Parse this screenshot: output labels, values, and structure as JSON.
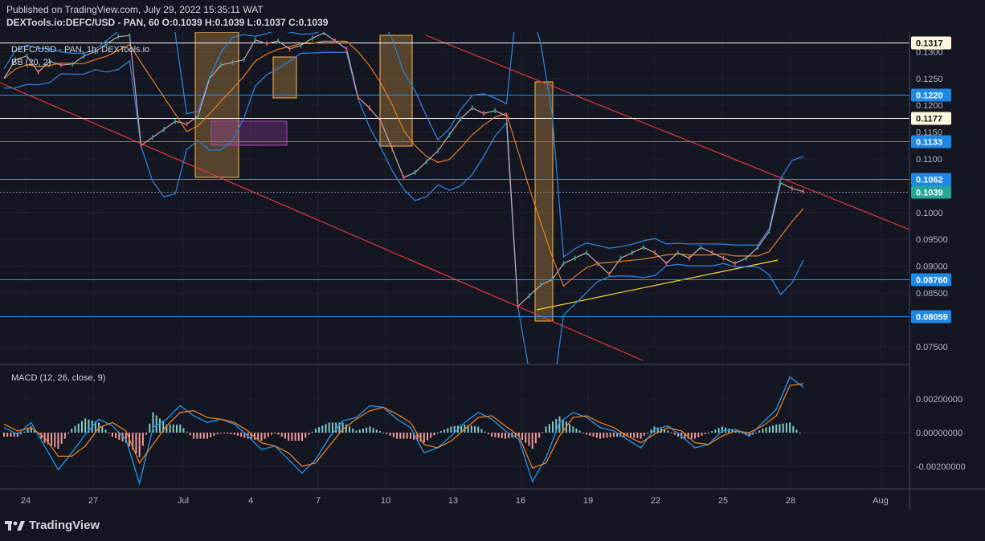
{
  "header": {
    "published": "Published on TradingView.com, July 29, 2022 15:35:11 WAT",
    "symbol_line": "DEXTools.io:DEFC/USD - PAN, 60",
    "ohlc": "O:0.1039 H:0.1039 L:0.1037 C:0.1039"
  },
  "legend": {
    "main": "DEFC/USD - PAN, 1h, DEXTools.io",
    "bb": "BB (20, 2)",
    "macd": "MACD (12, 26, close, 9)"
  },
  "brand": {
    "logo_text": "TradingView"
  },
  "colors": {
    "background": "#141722",
    "line_blue": "#2196f3",
    "line_red": "#e53935",
    "line_yellow": "#fdd835",
    "line_white": "#ffffff",
    "bb_band": "#2e7fd9",
    "bb_basis": "#e67e22",
    "macd_line": "#2196f3",
    "signal_line": "#e67e22",
    "hist_pos": "#80cbc4",
    "hist_neg": "#ef9a9a",
    "highlight_orange": "#ffb74d",
    "highlight_purple": "#ab47bc"
  },
  "price_axis": {
    "ticks": [
      "0.1300",
      "0.1250",
      "0.1200",
      "0.1150",
      "0.1100",
      "0.1000",
      "0.09500",
      "0.09000",
      "0.08500",
      "0.07500"
    ],
    "tick_values": [
      0.13,
      0.125,
      0.12,
      0.115,
      0.11,
      0.1,
      0.095,
      0.09,
      0.085,
      0.075
    ]
  },
  "price_levels": [
    {
      "value": 0.1317,
      "label": "0.1317",
      "style": "white"
    },
    {
      "value": 0.122,
      "label": "0.1220",
      "style": "blue"
    },
    {
      "value": 0.1177,
      "label": "0.1177",
      "style": "white"
    },
    {
      "value": 0.1133,
      "label": "0.1133",
      "style": "blue"
    },
    {
      "value": 0.1062,
      "label": "0.1062",
      "style": "blue"
    },
    {
      "value": 0.1039,
      "label": "0.1039",
      "style": "green"
    },
    {
      "value": 0.0876,
      "label": "0.08760",
      "style": "blue"
    },
    {
      "value": 0.08059,
      "label": "0.08059",
      "style": "blue"
    }
  ],
  "macd_axis": {
    "ticks": [
      "0.00200000",
      "0.00000000",
      "-0.00200000"
    ],
    "tick_values": [
      0.002,
      0,
      -0.002
    ]
  },
  "time_axis": {
    "ticks": [
      "24",
      "27",
      "Jul",
      "4",
      "7",
      "10",
      "13",
      "16",
      "19",
      "22",
      "25",
      "28",
      "Aug"
    ]
  },
  "chart_data": {
    "type": "line",
    "title": "DEFC/USD - PAN, 1h, DEXTools.io",
    "ylim": [
      0.0735,
      0.1335
    ],
    "close": [
      0.125,
      0.1285,
      0.1292,
      0.1262,
      0.1282,
      0.1275,
      0.1277,
      0.1292,
      0.13,
      0.1315,
      0.1328,
      0.133,
      0.1125,
      0.114,
      0.1155,
      0.117,
      0.1165,
      0.118,
      0.125,
      0.1275,
      0.128,
      0.1285,
      0.1322,
      0.1315,
      0.132,
      0.1305,
      0.1312,
      0.1325,
      0.1335,
      0.132,
      0.1305,
      0.1215,
      0.1195,
      0.117,
      0.1118,
      0.1065,
      0.1075,
      0.1095,
      0.1115,
      0.1145,
      0.1175,
      0.1195,
      0.1185,
      0.119,
      0.118,
      0.0825,
      0.0845,
      0.0865,
      0.0875,
      0.0905,
      0.0915,
      0.0925,
      0.0905,
      0.0885,
      0.0915,
      0.0925,
      0.0935,
      0.0925,
      0.0905,
      0.0925,
      0.0915,
      0.0935,
      0.0925,
      0.0915,
      0.0905,
      0.0915,
      0.0935,
      0.0965,
      0.1055,
      0.1045,
      0.1039
    ],
    "macd": [
      0.0003,
      -0.0001,
      0.0006,
      -0.0008,
      -0.0022,
      -0.0012,
      -0.0001,
      0.0008,
      0.0004,
      -0.0004,
      -0.003,
      0.0003,
      0.0008,
      0.0016,
      0.001,
      0.0006,
      0.0008,
      0.0005,
      -0.0002,
      -0.001,
      -0.0008,
      -0.0016,
      -0.0024,
      -0.0016,
      -0.0003,
      0.0007,
      0.0009,
      0.0016,
      0.0015,
      0.0008,
      0.0003,
      -0.0012,
      -0.0009,
      -0.0002,
      0.0006,
      0.0012,
      0.0008,
      0.0001,
      -0.0004,
      -0.0029,
      -0.0015,
      0.0006,
      0.0012,
      0.0009,
      0.0003,
      0.0001,
      -0.0004,
      -0.0009,
      0.0002,
      0.0004,
      -0.0002,
      -0.0009,
      -0.0007,
      0.0001,
      0.0002,
      -0.0002,
      0.0006,
      0.0014,
      0.0033,
      0.0027
    ],
    "signal": [
      0.0005,
      0.0001,
      0.0003,
      -0.0003,
      -0.0014,
      -0.0014,
      -0.0008,
      0.0003,
      0.0006,
      0.0001,
      -0.0018,
      -0.0007,
      0.0004,
      0.0012,
      0.0013,
      0.0009,
      0.0008,
      0.0006,
      0.0001,
      -0.0006,
      -0.0008,
      -0.0012,
      -0.002,
      -0.0018,
      -0.0008,
      0.0002,
      0.0008,
      0.0013,
      0.0015,
      0.0011,
      0.0006,
      -0.0007,
      -0.0009,
      -0.0005,
      0.0002,
      0.0009,
      0.001,
      0.0004,
      -0.0002,
      -0.0021,
      -0.0018,
      -0.0002,
      0.0009,
      0.001,
      0.0006,
      0.0003,
      -0.0002,
      -0.0006,
      -0.0001,
      0.0003,
      0.0001,
      -0.0006,
      -0.0007,
      -0.0002,
      0.0001,
      0.0,
      0.0004,
      0.001,
      0.0028,
      0.0029
    ]
  }
}
